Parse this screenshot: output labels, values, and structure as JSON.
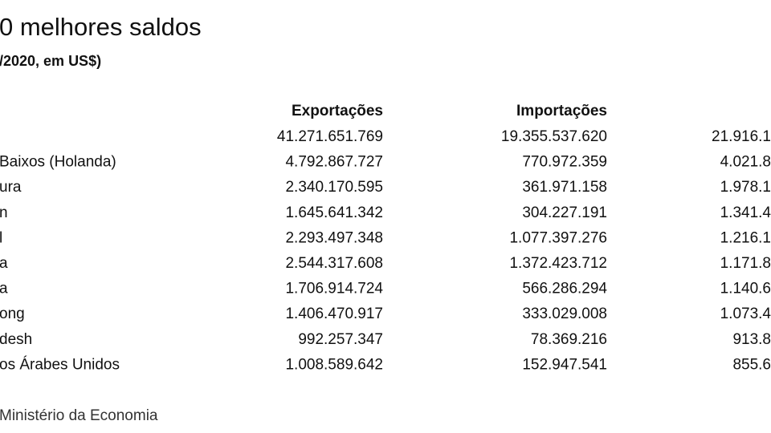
{
  "header": {
    "title": "0 melhores saldos",
    "subtitle": "/2020, em US$)"
  },
  "table": {
    "columns": [
      "Exportações",
      "Importações"
    ],
    "rows": [
      [
        null,
        "41.271.651.769",
        "19.355.537.620",
        "21.916.1"
      ],
      [
        "Baixos (Holanda)",
        "4.792.867.727",
        "770.972.359",
        "4.021.8"
      ],
      [
        "ura",
        "2.340.170.595",
        "361.971.158",
        "1.978.1"
      ],
      [
        "n",
        "1.645.641.342",
        "304.227.191",
        "1.341.4"
      ],
      [
        "l",
        "2.293.497.348",
        "1.077.397.276",
        "1.216.1"
      ],
      [
        "a",
        "2.544.317.608",
        "1.372.423.712",
        "1.171.8"
      ],
      [
        "a",
        "1.706.914.724",
        "566.286.294",
        "1.140.6"
      ],
      [
        "ong",
        "1.406.470.917",
        "333.029.008",
        "1.073.4"
      ],
      [
        "desh",
        "992.257.347",
        "78.369.216",
        "913.8"
      ],
      [
        "os Árabes Unidos",
        "1.008.589.642",
        "152.947.541",
        "855.6"
      ]
    ]
  },
  "footer": {
    "source": "Ministério da Economia"
  }
}
